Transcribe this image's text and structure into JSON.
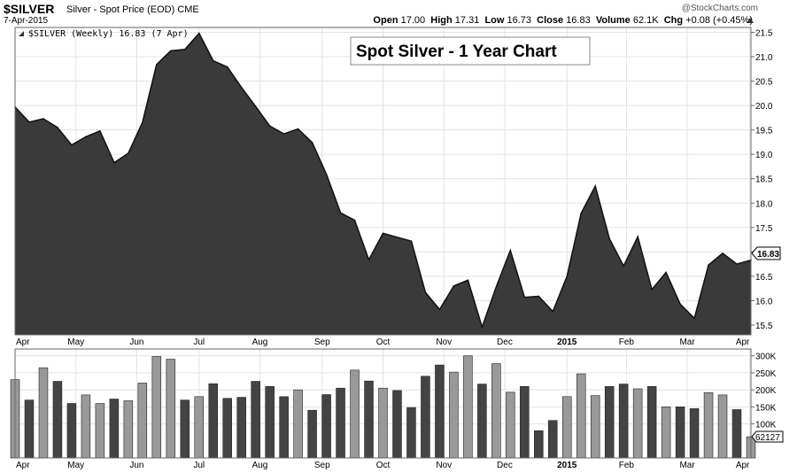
{
  "header": {
    "symbol": "$SILVER",
    "description": "Silver - Spot Price (EOD)  CME",
    "date": "7-Apr-2015",
    "brand": "@StockCharts.com",
    "quote": {
      "open_label": "Open",
      "open": "17.00",
      "high_label": "High",
      "high": "17.31",
      "low_label": "Low",
      "low": "16.73",
      "close_label": "Close",
      "close": "16.83",
      "volume_label": "Volume",
      "volume": "62.1K",
      "chg_label": "Chg",
      "chg": "+0.08 (+0.45%)"
    }
  },
  "chart_data": {
    "type": "area",
    "legend_label": "$SILVER (Weekly) 16.83 (7 Apr)",
    "title": "Spot Silver - 1 Year Chart",
    "last_value_label": "16.83",
    "ylim": [
      15.3,
      21.6
    ],
    "y_ticks": [
      "15.5",
      "16.0",
      "16.5",
      "17.0",
      "17.5",
      "18.0",
      "18.5",
      "19.0",
      "19.5",
      "20.0",
      "20.5",
      "21.0",
      "21.5"
    ],
    "month_labels": [
      "Apr",
      "May",
      "Jun",
      "Jul",
      "Aug",
      "Sep",
      "Oct",
      "Nov",
      "Dec",
      "2015",
      "Feb",
      "Mar",
      "Apr"
    ],
    "month_positions": [
      0,
      4.3,
      8.6,
      13.0,
      17.3,
      21.7,
      26.0,
      30.3,
      34.6,
      39.0,
      43.2,
      47.5,
      51.9
    ],
    "colors": {
      "area": "#3a3a3a",
      "line": "#111111",
      "bar_dark": "#444444",
      "bar_light": "#999999"
    },
    "price": [
      19.97,
      19.66,
      19.73,
      19.55,
      19.19,
      19.36,
      19.48,
      18.83,
      19.02,
      19.65,
      20.84,
      21.12,
      21.15,
      21.48,
      20.92,
      20.79,
      20.37,
      19.98,
      19.58,
      19.42,
      19.52,
      19.24,
      18.59,
      17.8,
      17.65,
      16.84,
      17.38,
      17.3,
      17.22,
      16.17,
      15.82,
      16.3,
      16.42,
      15.46,
      16.28,
      17.03,
      16.07,
      16.09,
      15.78,
      16.5,
      17.79,
      18.35,
      17.27,
      16.71,
      17.31,
      16.23,
      16.58,
      15.93,
      15.64,
      16.73,
      16.97,
      16.75,
      16.83
    ],
    "volume_ylim": [
      0,
      320000
    ],
    "volume_ticks": [
      "100K",
      "150K",
      "200K",
      "250K",
      "300K"
    ],
    "volume_last_label": "62127",
    "volume": [
      230000,
      170000,
      265000,
      225000,
      160000,
      185000,
      160000,
      173000,
      168000,
      220000,
      298000,
      290000,
      170000,
      180000,
      218000,
      175000,
      178000,
      225000,
      210000,
      180000,
      200000,
      140000,
      186000,
      205000,
      258000,
      226000,
      205000,
      198000,
      148000,
      240000,
      273000,
      252000,
      300000,
      217000,
      277000,
      193000,
      210000,
      80000,
      110000,
      180000,
      247000,
      183000,
      210000,
      217000,
      203000,
      210000,
      150000,
      150000,
      145000,
      192000,
      185000,
      142000,
      62127
    ],
    "volume_shade": [
      "l",
      "d",
      "l",
      "d",
      "d",
      "l",
      "l",
      "d",
      "l",
      "l",
      "l",
      "l",
      "d",
      "l",
      "d",
      "d",
      "d",
      "d",
      "d",
      "d",
      "l",
      "d",
      "d",
      "d",
      "l",
      "d",
      "l",
      "d",
      "d",
      "d",
      "d",
      "l",
      "l",
      "d",
      "l",
      "l",
      "d",
      "d",
      "d",
      "l",
      "l",
      "l",
      "d",
      "d",
      "l",
      "d",
      "l",
      "d",
      "d",
      "l",
      "l",
      "d",
      "l"
    ]
  }
}
